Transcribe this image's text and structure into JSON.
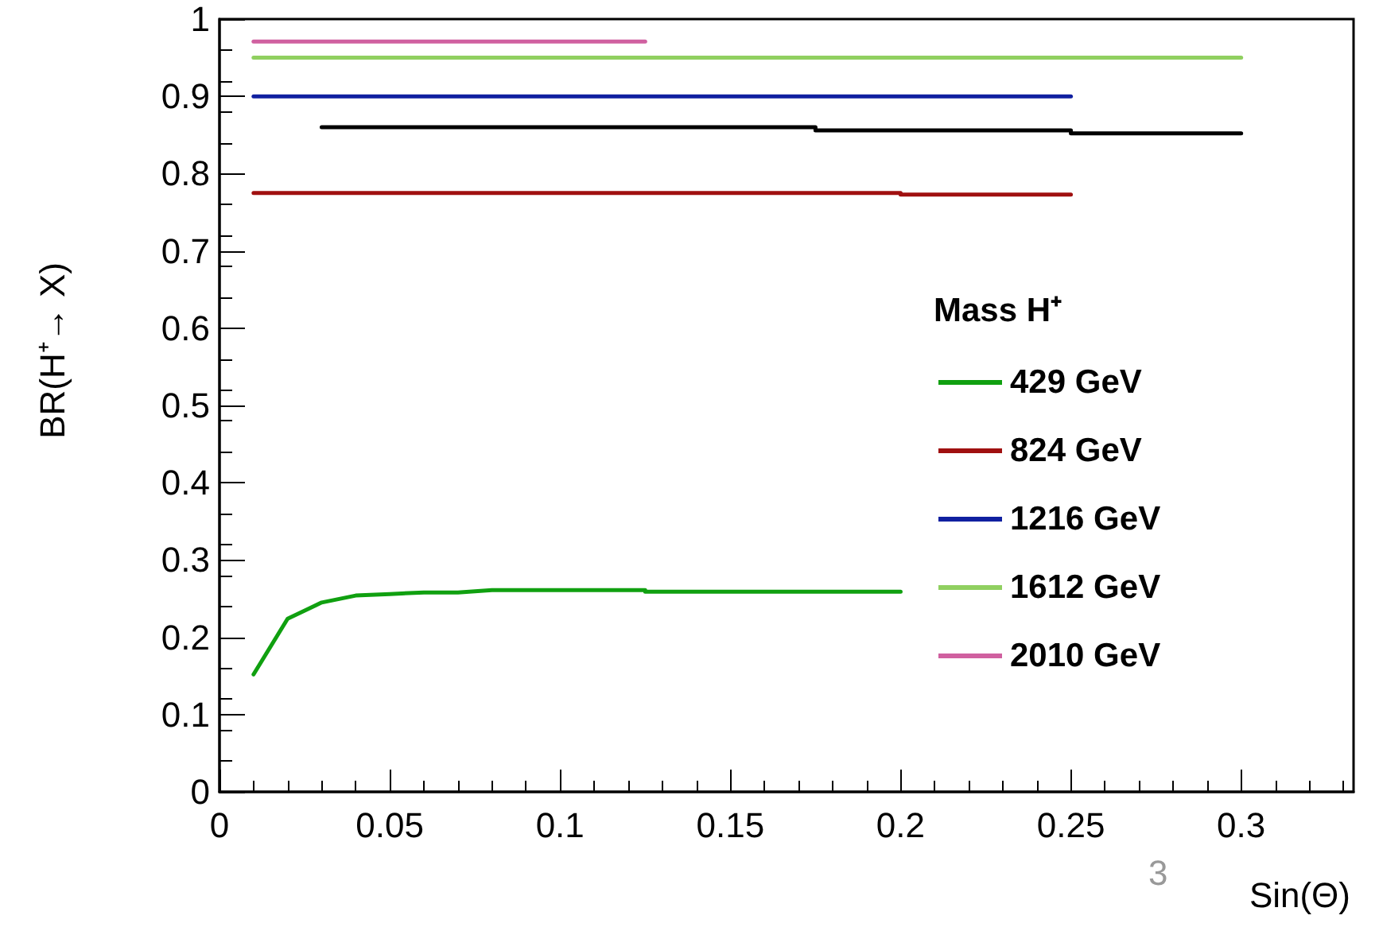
{
  "chart_data": {
    "type": "line",
    "xlabel": "Sin(Θ)",
    "ylabel": "BR(H⁺→ X)",
    "legend_title": "Mass H⁺",
    "xlim": [
      0,
      0.333
    ],
    "xticks": [
      0,
      0.05,
      0.1,
      0.15,
      0.2,
      0.25,
      0.3
    ],
    "ylim": [
      0,
      1
    ],
    "yticks": [
      0,
      0.1,
      0.2,
      0.3,
      0.4,
      0.5,
      0.6,
      0.7,
      0.8,
      0.9,
      1
    ],
    "grid": false,
    "legend": "right",
    "marker": "none",
    "line_style": "solid",
    "annotations": [
      "3"
    ],
    "series": [
      {
        "name": "429 GeV",
        "color": "#10a010",
        "x": [
          0.01,
          0.02,
          0.03,
          0.04,
          0.05,
          0.06,
          0.07,
          0.08,
          0.125,
          0.125,
          0.2
        ],
        "values": [
          0.152,
          0.224,
          0.245,
          0.254,
          0.256,
          0.258,
          0.258,
          0.261,
          0.261,
          0.259,
          0.259
        ]
      },
      {
        "name": "824 GeV",
        "color": "#a01010",
        "x": [
          0.01,
          0.2,
          0.2,
          0.25
        ],
        "values": [
          0.775,
          0.775,
          0.773,
          0.773
        ]
      },
      {
        "name": "1216 GeV",
        "color": "#1020a0",
        "x": [
          0.01,
          0.25
        ],
        "values": [
          0.9,
          0.9
        ]
      },
      {
        "name": "1612 GeV",
        "color": "#90d060",
        "x": [
          0.01,
          0.3
        ],
        "values": [
          0.95,
          0.95
        ]
      },
      {
        "name": "2010 GeV",
        "color": "#d060a0",
        "x": [
          0.01,
          0.125
        ],
        "values": [
          0.971,
          0.971
        ]
      },
      {
        "color": "#000000",
        "x": [
          0.03,
          0.175,
          0.175,
          0.25,
          0.25,
          0.3
        ],
        "values": [
          0.86,
          0.86,
          0.856,
          0.856,
          0.852,
          0.852
        ]
      }
    ]
  }
}
